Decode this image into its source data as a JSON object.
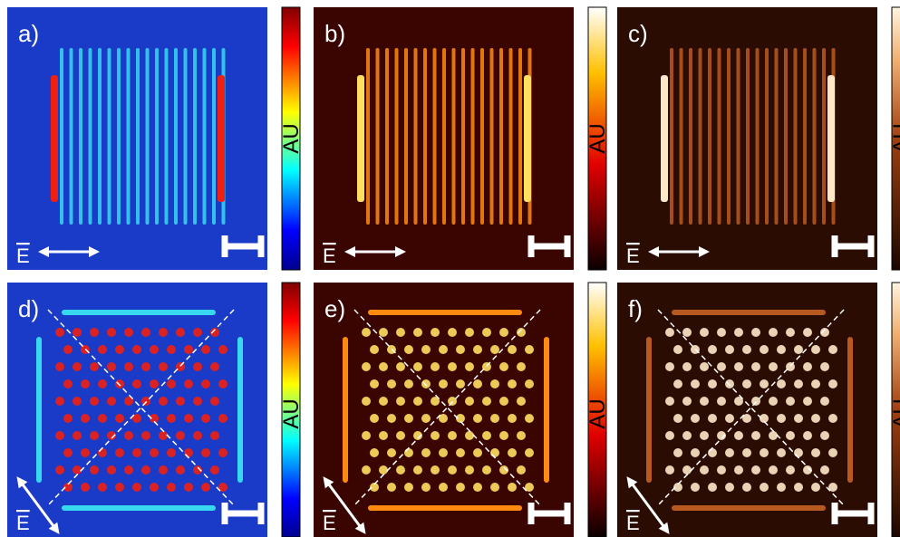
{
  "panels": [
    {
      "label": "a)",
      "colorbar_label": "AU",
      "field_label": "E"
    },
    {
      "label": "b)",
      "colorbar_label": "AU",
      "field_label": "E"
    },
    {
      "label": "c)",
      "colorbar_label": "AU",
      "field_label": "E"
    },
    {
      "label": "d)",
      "colorbar_label": "AU",
      "field_label": "E"
    },
    {
      "label": "e)",
      "colorbar_label": "AU",
      "field_label": "E"
    },
    {
      "label": "f)",
      "colorbar_label": "AU",
      "field_label": "E"
    }
  ]
}
